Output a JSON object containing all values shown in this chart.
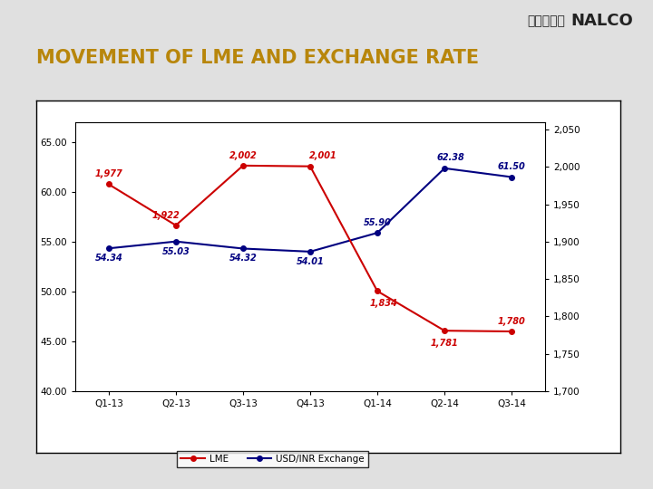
{
  "title": "MOVEMENT OF LME AND EXCHANGE RATE",
  "categories": [
    "Q1-13",
    "Q2-13",
    "Q3-13",
    "Q4-13",
    "Q1-14",
    "Q2-14",
    "Q3-14"
  ],
  "usd_inr": [
    54.34,
    55.03,
    54.32,
    54.01,
    55.9,
    62.38,
    61.5
  ],
  "usd_ann": [
    "54.34",
    "55.03",
    "54.32",
    "54.01",
    "55.90",
    "62.38",
    "61.50"
  ],
  "lme_right": [
    1977,
    1922,
    2002,
    2001,
    1834,
    1781,
    1780
  ],
  "lme_ann": [
    "1,977",
    "1,922",
    "2,002",
    "2,001",
    "1,834",
    "1,781",
    "1,780"
  ],
  "lme_color": "#CC0000",
  "exchange_color": "#000080",
  "title_color": "#B8860B",
  "bg_color": "#e8e8e8",
  "chart_bg": "#ffffff",
  "ylim_left": [
    40.0,
    67.0
  ],
  "ylim_right": [
    1700,
    2060
  ],
  "yticks_left": [
    40.0,
    45.0,
    50.0,
    55.0,
    60.0,
    65.0
  ],
  "yticks_right": [
    1700,
    1750,
    1800,
    1850,
    1900,
    1950,
    2000,
    2050
  ],
  "header_bar_thick_color": "#CC0000",
  "header_bar_thin_color": "#8B0000",
  "bottom_red_color": "#CC0000",
  "legend_labels": [
    "LME",
    "USD/INR Exchange"
  ],
  "header_bg": "#d0d0d0",
  "slide_bg": "#e0e0e0"
}
